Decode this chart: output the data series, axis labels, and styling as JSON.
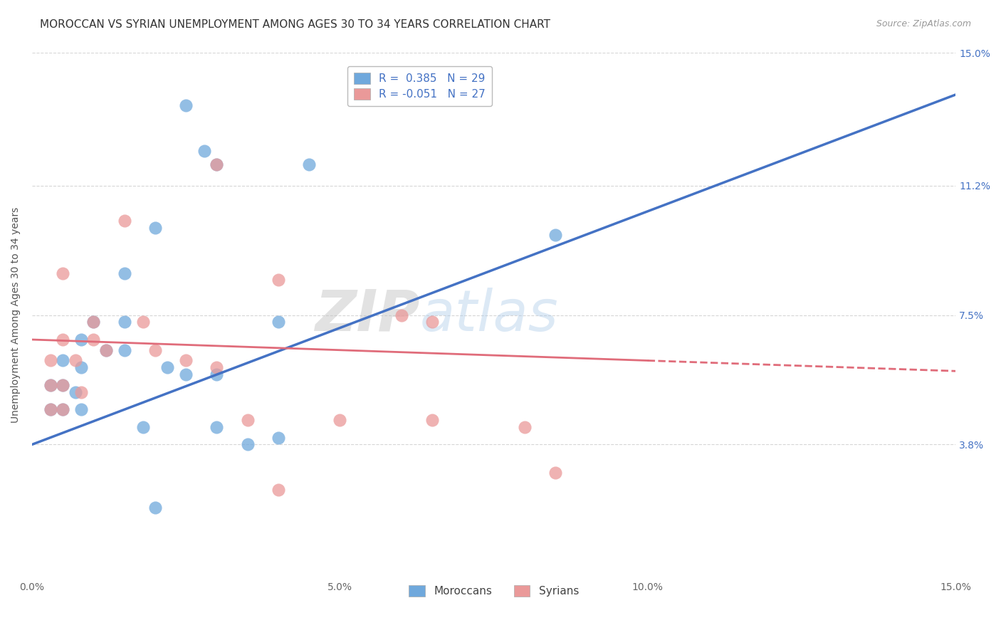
{
  "title": "MOROCCAN VS SYRIAN UNEMPLOYMENT AMONG AGES 30 TO 34 YEARS CORRELATION CHART",
  "source": "Source: ZipAtlas.com",
  "ylabel": "Unemployment Among Ages 30 to 34 years",
  "xlim": [
    0,
    0.15
  ],
  "ylim": [
    0,
    0.15
  ],
  "xtick_vals": [
    0.0,
    0.05,
    0.1,
    0.15
  ],
  "xticklabels": [
    "0.0%",
    "5.0%",
    "10.0%",
    "15.0%"
  ],
  "ytick_positions": [
    0.038,
    0.075,
    0.112,
    0.15
  ],
  "ytick_labels": [
    "3.8%",
    "7.5%",
    "11.2%",
    "15.0%"
  ],
  "watermark_zip": "ZIP",
  "watermark_atlas": "atlas",
  "moroccan_R": 0.385,
  "moroccan_N": 29,
  "syrian_R": -0.051,
  "syrian_N": 27,
  "moroccan_color": "#6fa8dc",
  "syrian_color": "#ea9999",
  "moroccan_line_color": "#4472c4",
  "syrian_line_color": "#e06c7a",
  "moroccan_line": [
    [
      0.0,
      0.038
    ],
    [
      0.15,
      0.138
    ]
  ],
  "syrian_line": [
    [
      0.0,
      0.068
    ],
    [
      0.1,
      0.062
    ]
  ],
  "moroccan_dots": [
    [
      0.025,
      0.135
    ],
    [
      0.028,
      0.122
    ],
    [
      0.03,
      0.118
    ],
    [
      0.045,
      0.118
    ],
    [
      0.02,
      0.1
    ],
    [
      0.085,
      0.098
    ],
    [
      0.015,
      0.087
    ],
    [
      0.01,
      0.073
    ],
    [
      0.015,
      0.073
    ],
    [
      0.04,
      0.073
    ],
    [
      0.008,
      0.068
    ],
    [
      0.012,
      0.065
    ],
    [
      0.015,
      0.065
    ],
    [
      0.005,
      0.062
    ],
    [
      0.008,
      0.06
    ],
    [
      0.022,
      0.06
    ],
    [
      0.025,
      0.058
    ],
    [
      0.03,
      0.058
    ],
    [
      0.003,
      0.055
    ],
    [
      0.005,
      0.055
    ],
    [
      0.007,
      0.053
    ],
    [
      0.003,
      0.048
    ],
    [
      0.005,
      0.048
    ],
    [
      0.008,
      0.048
    ],
    [
      0.018,
      0.043
    ],
    [
      0.03,
      0.043
    ],
    [
      0.04,
      0.04
    ],
    [
      0.035,
      0.038
    ],
    [
      0.02,
      0.02
    ]
  ],
  "syrian_dots": [
    [
      0.03,
      0.118
    ],
    [
      0.015,
      0.102
    ],
    [
      0.005,
      0.087
    ],
    [
      0.04,
      0.085
    ],
    [
      0.01,
      0.073
    ],
    [
      0.018,
      0.073
    ],
    [
      0.005,
      0.068
    ],
    [
      0.01,
      0.068
    ],
    [
      0.012,
      0.065
    ],
    [
      0.02,
      0.065
    ],
    [
      0.003,
      0.062
    ],
    [
      0.007,
      0.062
    ],
    [
      0.025,
      0.062
    ],
    [
      0.03,
      0.06
    ],
    [
      0.003,
      0.055
    ],
    [
      0.005,
      0.055
    ],
    [
      0.008,
      0.053
    ],
    [
      0.003,
      0.048
    ],
    [
      0.005,
      0.048
    ],
    [
      0.035,
      0.045
    ],
    [
      0.05,
      0.045
    ],
    [
      0.06,
      0.075
    ],
    [
      0.065,
      0.073
    ],
    [
      0.065,
      0.045
    ],
    [
      0.08,
      0.043
    ],
    [
      0.085,
      0.03
    ],
    [
      0.04,
      0.025
    ]
  ],
  "title_fontsize": 11,
  "axis_label_fontsize": 10,
  "tick_fontsize": 10,
  "legend_fontsize": 11
}
